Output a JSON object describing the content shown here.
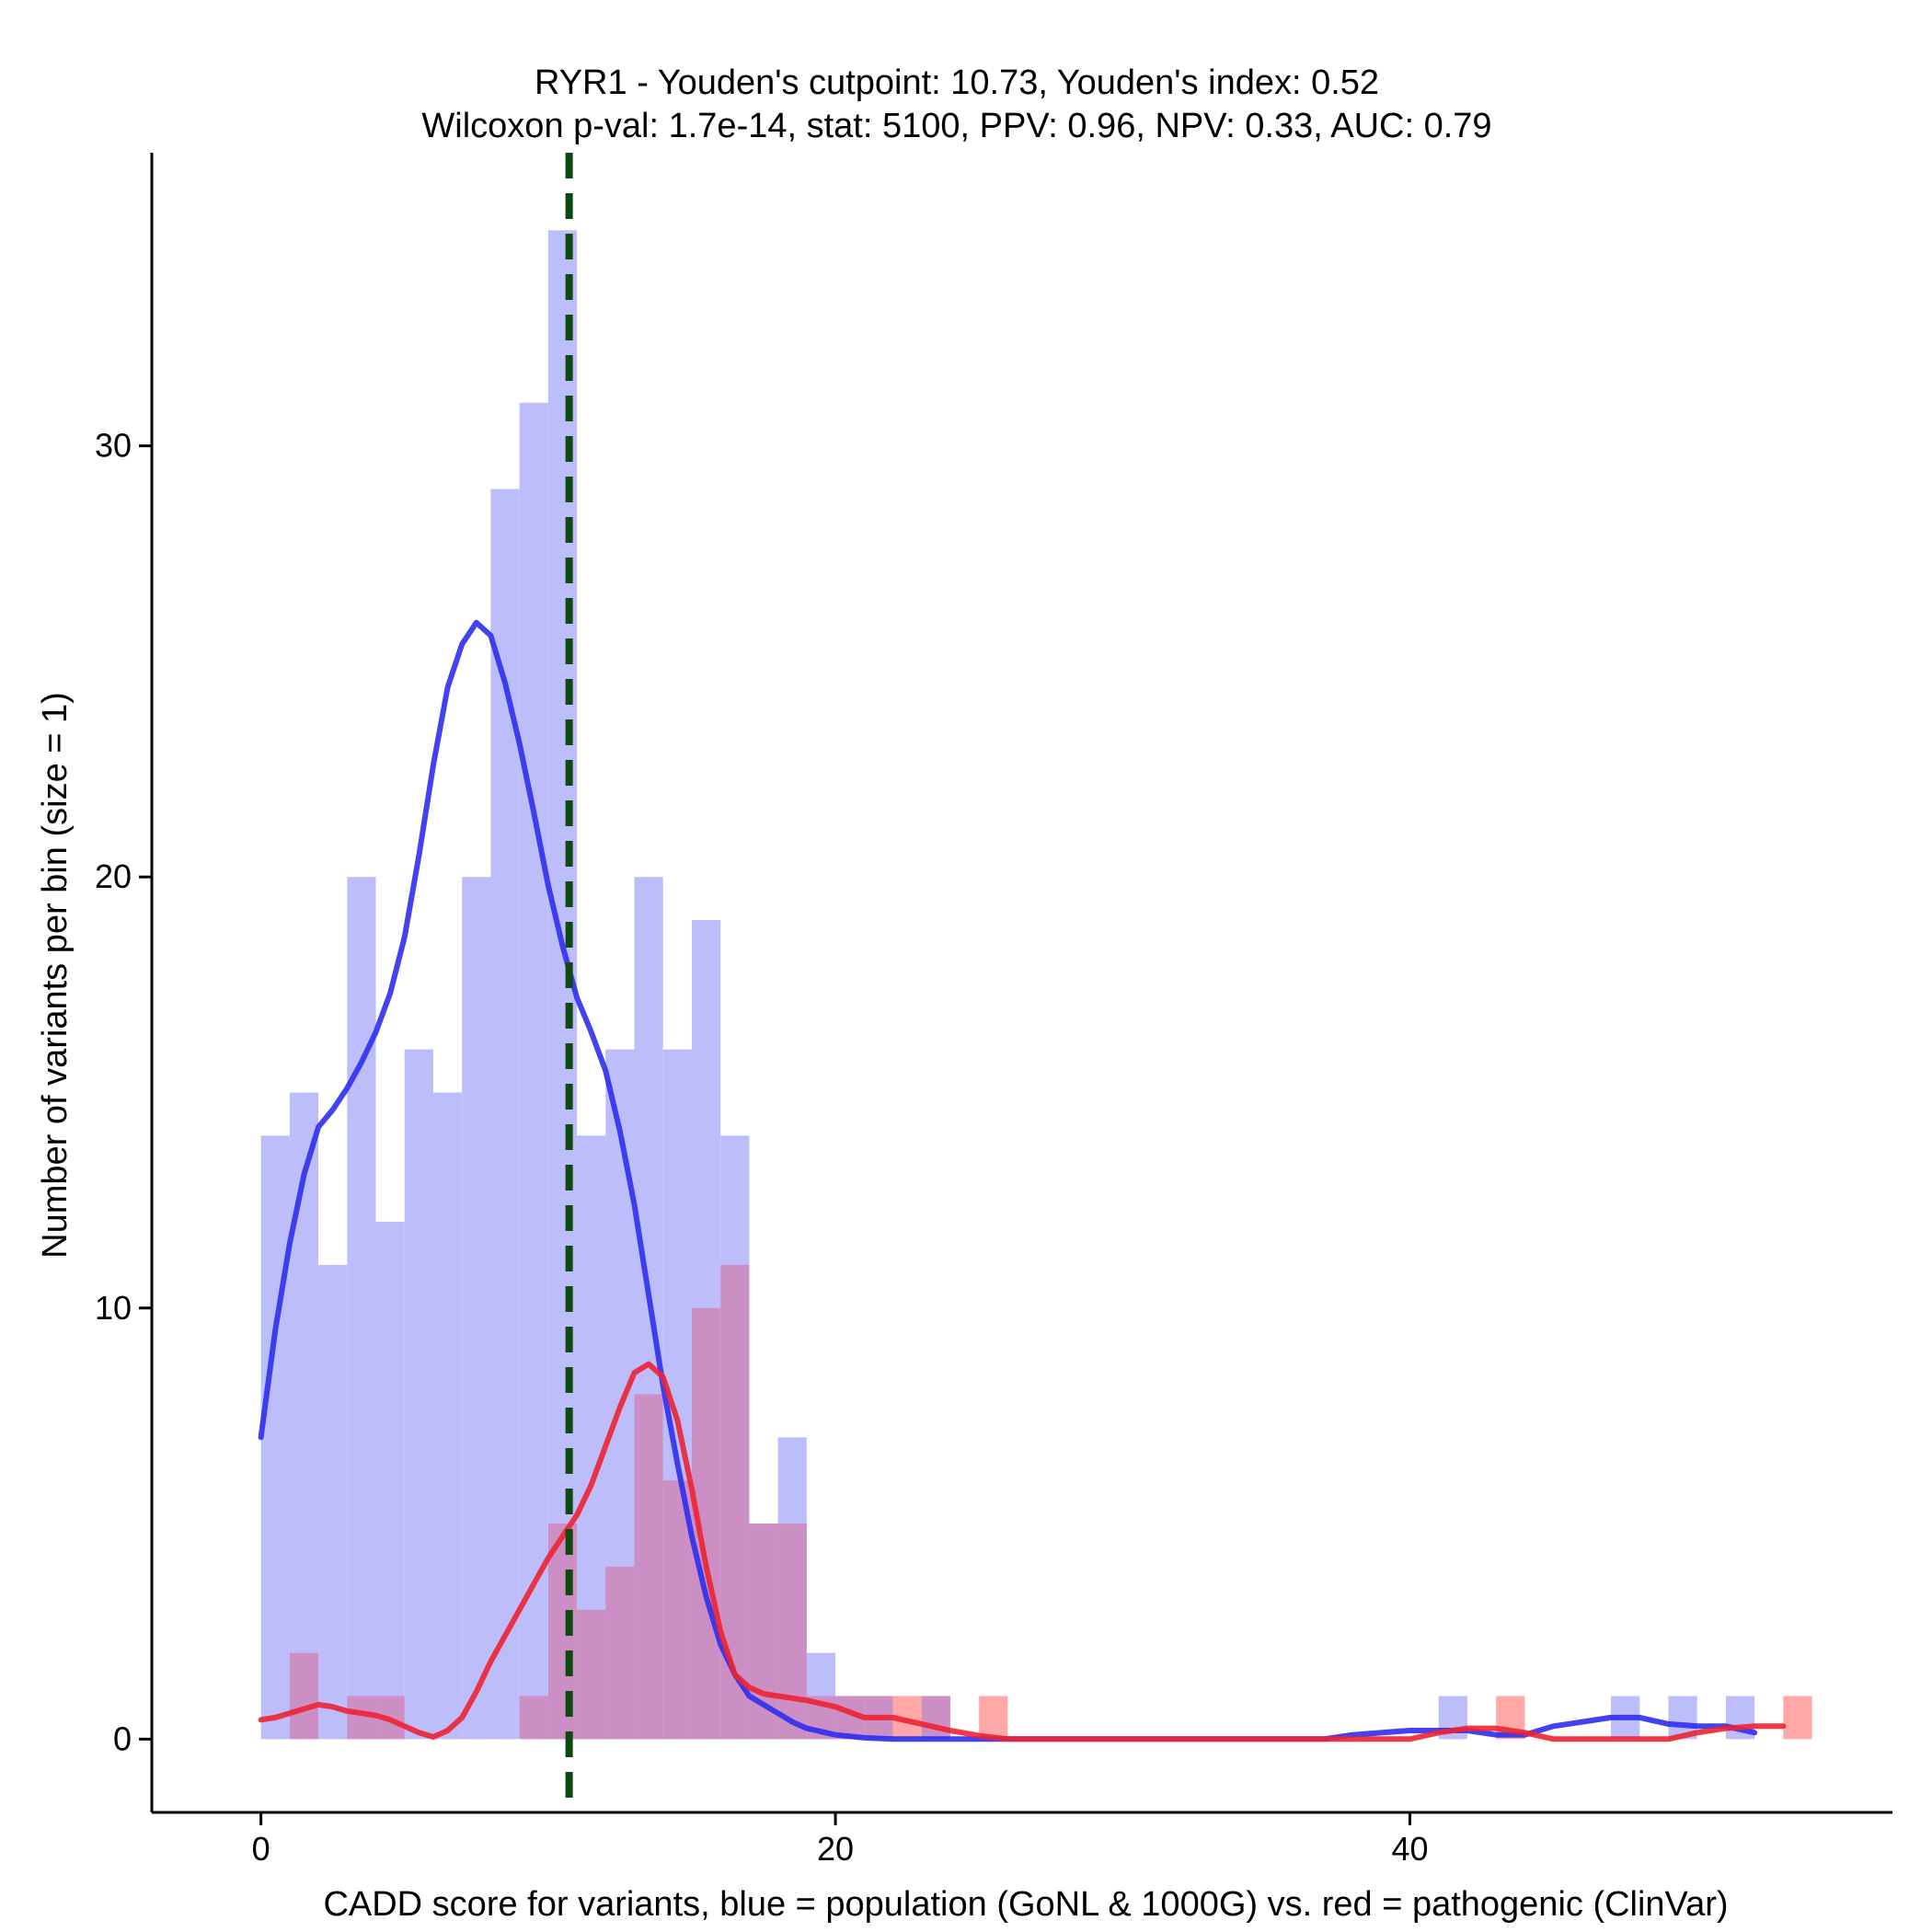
{
  "chart_data": {
    "type": "bar",
    "title_line1": "RYR1 - Youden's cutpoint: 10.73, Youden's index: 0.52",
    "title_line2": "Wilcoxon p-val: 1.7e-14, stat: 5100, PPV: 0.96, NPV: 0.33, AUC: 0.79",
    "xlabel": "CADD score for variants, blue = population (GoNL & 1000G) vs. red = pathogenic (ClinVar)",
    "ylabel": "Number of variants per bin (size = 1)",
    "xlim": [
      -3.8,
      56.8
    ],
    "ylim": [
      -1.7,
      36.8
    ],
    "x_ticks": [
      0,
      20,
      40
    ],
    "x_tick_labels": [
      "0",
      "20",
      "40"
    ],
    "y_ticks": [
      0,
      10,
      20,
      30
    ],
    "y_tick_labels": [
      "0",
      "10",
      "20",
      "30"
    ],
    "bin_size": 1,
    "cutpoint": 10.73,
    "colors": {
      "population_fill": "#bdbdfb",
      "pathogenic_fill": "#ffa8a8",
      "overlap_fill": "#cc8fc3",
      "population_line": "#2e2ef0",
      "pathogenic_line": "#ee2233",
      "cutpoint_line": "#0d4a10"
    },
    "series": [
      {
        "name": "population (GoNL & 1000G)",
        "bins": [
          {
            "x": 0,
            "count": 14
          },
          {
            "x": 1,
            "count": 15
          },
          {
            "x": 2,
            "count": 11
          },
          {
            "x": 3,
            "count": 20
          },
          {
            "x": 4,
            "count": 12
          },
          {
            "x": 5,
            "count": 16
          },
          {
            "x": 6,
            "count": 15
          },
          {
            "x": 7,
            "count": 20
          },
          {
            "x": 8,
            "count": 29
          },
          {
            "x": 9,
            "count": 31
          },
          {
            "x": 10,
            "count": 35
          },
          {
            "x": 11,
            "count": 14
          },
          {
            "x": 12,
            "count": 16
          },
          {
            "x": 13,
            "count": 20
          },
          {
            "x": 14,
            "count": 16
          },
          {
            "x": 15,
            "count": 19
          },
          {
            "x": 16,
            "count": 14
          },
          {
            "x": 17,
            "count": 5
          },
          {
            "x": 18,
            "count": 7
          },
          {
            "x": 19,
            "count": 2
          },
          {
            "x": 20,
            "count": 1
          },
          {
            "x": 21,
            "count": 1
          },
          {
            "x": 23,
            "count": 1
          },
          {
            "x": 41,
            "count": 1
          },
          {
            "x": 47,
            "count": 1
          },
          {
            "x": 49,
            "count": 1
          },
          {
            "x": 51,
            "count": 1
          }
        ],
        "density": [
          [
            0,
            7.0
          ],
          [
            0.5,
            9.5
          ],
          [
            1,
            11.5
          ],
          [
            1.5,
            13.1
          ],
          [
            2,
            14.2
          ],
          [
            2.5,
            14.6
          ],
          [
            3,
            15.1
          ],
          [
            3.5,
            15.7
          ],
          [
            4,
            16.4
          ],
          [
            4.5,
            17.3
          ],
          [
            5,
            18.6
          ],
          [
            5.5,
            20.5
          ],
          [
            6,
            22.6
          ],
          [
            6.5,
            24.4
          ],
          [
            7,
            25.4
          ],
          [
            7.5,
            25.9
          ],
          [
            8,
            25.6
          ],
          [
            8.5,
            24.5
          ],
          [
            9,
            23.1
          ],
          [
            9.5,
            21.5
          ],
          [
            10,
            19.8
          ],
          [
            10.5,
            18.4
          ],
          [
            11,
            17.2
          ],
          [
            11.5,
            16.4
          ],
          [
            12,
            15.5
          ],
          [
            12.5,
            14.1
          ],
          [
            13,
            12.4
          ],
          [
            13.5,
            10.3
          ],
          [
            14,
            8.2
          ],
          [
            14.5,
            6.4
          ],
          [
            15,
            4.7
          ],
          [
            15.5,
            3.3
          ],
          [
            16,
            2.2
          ],
          [
            16.5,
            1.5
          ],
          [
            17,
            1.0
          ],
          [
            17.5,
            0.8
          ],
          [
            18,
            0.6
          ],
          [
            18.5,
            0.4
          ],
          [
            19,
            0.25
          ],
          [
            20,
            0.1
          ],
          [
            21,
            0.03
          ],
          [
            22,
            0.0
          ],
          [
            30,
            0.0
          ],
          [
            37,
            0.0
          ],
          [
            38,
            0.1
          ],
          [
            40,
            0.2
          ],
          [
            42,
            0.2
          ],
          [
            43,
            0.1
          ],
          [
            44,
            0.1
          ],
          [
            45,
            0.3
          ],
          [
            46,
            0.4
          ],
          [
            47,
            0.5
          ],
          [
            48,
            0.5
          ],
          [
            49,
            0.35
          ],
          [
            50,
            0.3
          ],
          [
            51,
            0.3
          ],
          [
            52,
            0.15
          ]
        ]
      },
      {
        "name": "pathogenic (ClinVar)",
        "bins": [
          {
            "x": 1,
            "count": 2
          },
          {
            "x": 3,
            "count": 1
          },
          {
            "x": 4,
            "count": 1
          },
          {
            "x": 9,
            "count": 1
          },
          {
            "x": 10,
            "count": 5
          },
          {
            "x": 11,
            "count": 3
          },
          {
            "x": 12,
            "count": 4
          },
          {
            "x": 13,
            "count": 8
          },
          {
            "x": 14,
            "count": 6
          },
          {
            "x": 15,
            "count": 10
          },
          {
            "x": 16,
            "count": 11
          },
          {
            "x": 17,
            "count": 5
          },
          {
            "x": 18,
            "count": 5
          },
          {
            "x": 19,
            "count": 1
          },
          {
            "x": 20,
            "count": 1
          },
          {
            "x": 21,
            "count": 1
          },
          {
            "x": 22,
            "count": 1
          },
          {
            "x": 23,
            "count": 1
          },
          {
            "x": 25,
            "count": 1
          },
          {
            "x": 43,
            "count": 1
          },
          {
            "x": 53,
            "count": 1
          }
        ],
        "density": [
          [
            0,
            0.45
          ],
          [
            0.5,
            0.5
          ],
          [
            1,
            0.6
          ],
          [
            1.5,
            0.7
          ],
          [
            2,
            0.8
          ],
          [
            2.5,
            0.75
          ],
          [
            3,
            0.65
          ],
          [
            3.5,
            0.6
          ],
          [
            4,
            0.55
          ],
          [
            4.5,
            0.45
          ],
          [
            5,
            0.3
          ],
          [
            5.5,
            0.15
          ],
          [
            6,
            0.05
          ],
          [
            6.5,
            0.2
          ],
          [
            7,
            0.5
          ],
          [
            7.5,
            1.1
          ],
          [
            8,
            1.8
          ],
          [
            8.5,
            2.4
          ],
          [
            9,
            3.0
          ],
          [
            9.5,
            3.6
          ],
          [
            10,
            4.2
          ],
          [
            10.5,
            4.7
          ],
          [
            11,
            5.2
          ],
          [
            11.5,
            5.9
          ],
          [
            12,
            6.8
          ],
          [
            12.5,
            7.7
          ],
          [
            13,
            8.5
          ],
          [
            13.5,
            8.7
          ],
          [
            14,
            8.4
          ],
          [
            14.5,
            7.4
          ],
          [
            15,
            5.8
          ],
          [
            15.5,
            4.0
          ],
          [
            16,
            2.5
          ],
          [
            16.5,
            1.5
          ],
          [
            17,
            1.2
          ],
          [
            17.5,
            1.05
          ],
          [
            18,
            1.0
          ],
          [
            19,
            0.9
          ],
          [
            20,
            0.75
          ],
          [
            21,
            0.5
          ],
          [
            22,
            0.5
          ],
          [
            23,
            0.35
          ],
          [
            24,
            0.2
          ],
          [
            25,
            0.08
          ],
          [
            26,
            0.0
          ],
          [
            37,
            0.0
          ],
          [
            40,
            0.0
          ],
          [
            41,
            0.15
          ],
          [
            42,
            0.25
          ],
          [
            43,
            0.25
          ],
          [
            44,
            0.15
          ],
          [
            45,
            0.0
          ],
          [
            49,
            0.0
          ],
          [
            50,
            0.15
          ],
          [
            51,
            0.25
          ],
          [
            52,
            0.3
          ],
          [
            53,
            0.3
          ]
        ]
      }
    ]
  }
}
